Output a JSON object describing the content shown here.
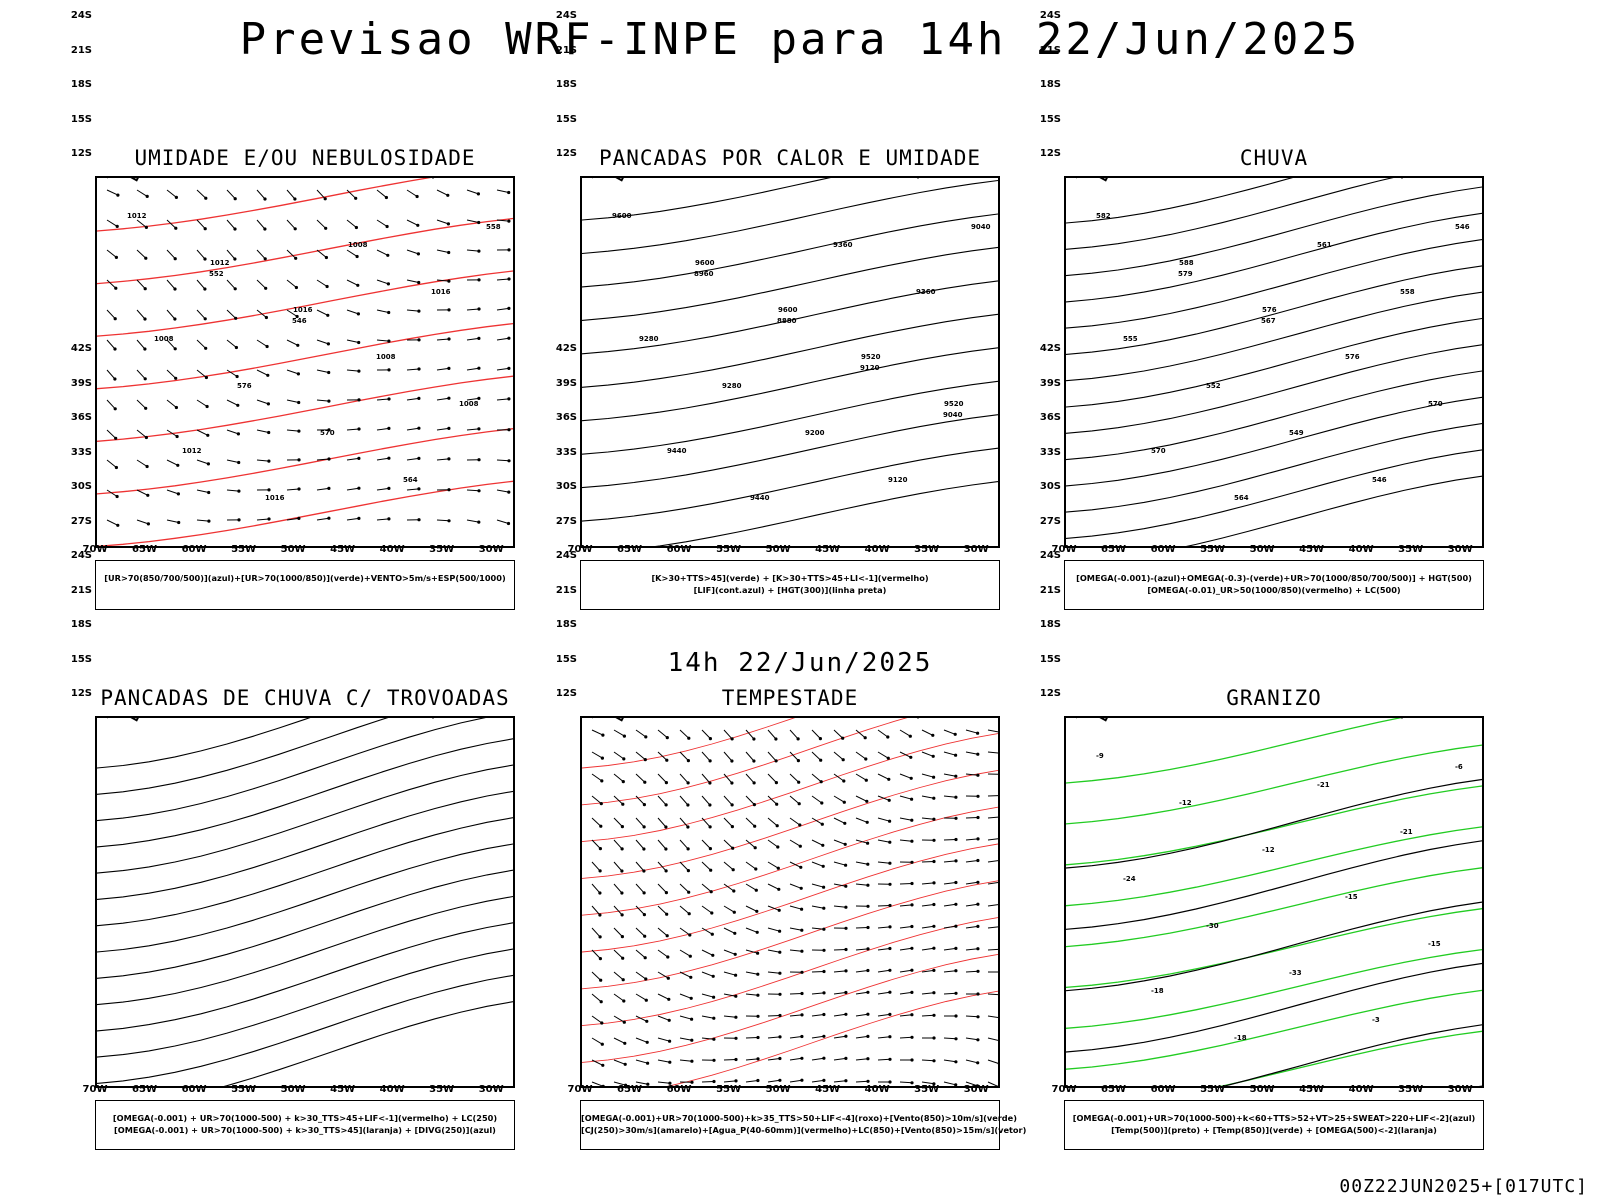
{
  "header": {
    "title": "Previsao WRF-INPE  para 14h 22/Jun/2025",
    "middle_title": "14h 22/Jun/2025",
    "footer": "00Z22JUN2025+[017UTC]"
  },
  "axes": {
    "lat_labels": [
      "12S",
      "15S",
      "18S",
      "21S",
      "24S",
      "27S",
      "30S",
      "33S",
      "36S",
      "39S",
      "42S"
    ],
    "lon_labels": [
      "70W",
      "65W",
      "60W",
      "55W",
      "50W",
      "45W",
      "40W",
      "35W",
      "30W"
    ]
  },
  "colors": {
    "red": "#ee3333",
    "green": "#22cc22",
    "blue": "#2233dd",
    "purple": "#9a90e0",
    "dark_teal": "#1e4b44",
    "yellow": "#e2d62a",
    "orange": "#f07a1a"
  },
  "panels": [
    {
      "title": "UMIDADE E/OU NEBULOSIDADE",
      "legend": [
        "[UR>70(850/700/500)](azul)+[UR>70(1000/850)](verde)+VENTO>5m/s+ESP(500/1000)"
      ],
      "contour_labels": [
        "1012",
        "1012",
        "1016",
        "1008",
        "1008",
        "1012",
        "1016",
        "1008",
        "1016",
        "1008",
        "576",
        "570",
        "564",
        "558",
        "552",
        "546"
      ]
    },
    {
      "title": "PANCADAS POR CALOR E UMIDADE",
      "legend": [
        "[K>30+TTS>45](verde)  +  [K>30+TTS>45+LI<-1](vermelho)",
        "[LIF](cont.azul)  +  [HGT(300)](linha preta)"
      ],
      "contour_labels": [
        "9600",
        "9600",
        "9600",
        "9520",
        "9520",
        "9440",
        "9440",
        "9360",
        "9360",
        "9280",
        "9280",
        "9200",
        "9120",
        "9040",
        "8960",
        "8880",
        "9120",
        "9040"
      ]
    },
    {
      "title": "CHUVA",
      "legend": [
        "[OMEGA(-0.001)-(azul)+OMEGA(-0.3)-(verde)+UR>70(1000/850/700/500)]  +  HGT(500)",
        "[OMEGA(-0.01)_UR>50(1000/850)(vermelho)  +  LC(500)"
      ],
      "contour_labels": [
        "582",
        "588",
        "576",
        "576",
        "570",
        "570",
        "564",
        "561",
        "558",
        "555",
        "552",
        "549",
        "546",
        "546",
        "579",
        "567"
      ]
    },
    {
      "title": "PANCADAS DE CHUVA C/ TROVOADAS",
      "legend": [
        "[OMEGA(-0.001)  +  UR>70(1000-500)  +  k>30_TTS>45+LIF<-1](vermelho)  +  LC(250)",
        "[OMEGA(-0.001)  +  UR>70(1000-500)  +  k>30_TTS>45](laranja)  +  [DIVG(250)](azul)"
      ],
      "contour_labels": []
    },
    {
      "title": "TEMPESTADE",
      "legend": [
        "[OMEGA(-0.001)+UR>70(1000-500)+k>35_TTS>50+LIF<-4](roxo)+[Vento(850)>10m/s](verde)",
        "[CJ(250)>30m/s](amarelo)+[Agua_P(40-60mm)](vermelho)+LC(850)+[Vento(850)>15m/s](vetor)"
      ],
      "contour_labels": []
    },
    {
      "title": "GRANIZO",
      "legend": [
        "[OMEGA(-0.001)+UR>70(1000-500)+k<60+TTS>52+VT>25+SWEAT>220+LIF<-2](azul)",
        "[Temp(500)](preto)  +  [Temp(850)](verde)  +  [OMEGA(500)<-2](laranja)"
      ],
      "contour_labels": [
        "-9",
        "-12",
        "-12",
        "-15",
        "-15",
        "-18",
        "-18",
        "-21",
        "-21",
        "-24",
        "-30",
        "-33",
        "-3",
        "-6"
      ]
    }
  ]
}
